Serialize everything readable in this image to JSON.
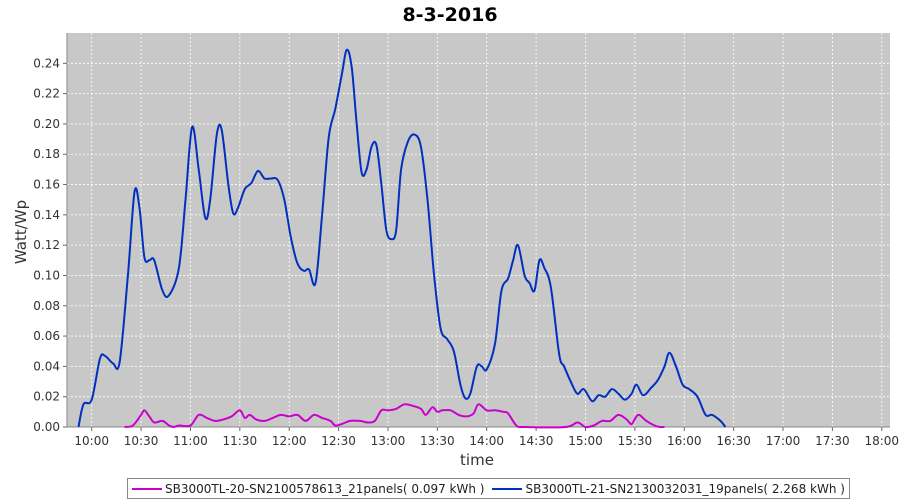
{
  "chart_data": {
    "type": "line",
    "title": "8-3-2016",
    "xlabel": "time",
    "ylabel": "Watt/Wp",
    "x_ticks": [
      "10:00",
      "10:30",
      "11:00",
      "11:30",
      "12:00",
      "12:30",
      "13:00",
      "13:30",
      "14:00",
      "14:30",
      "15:00",
      "15:30",
      "16:00",
      "16:30",
      "17:00",
      "17:30",
      "18:00"
    ],
    "xlim": [
      "09:45",
      "18:05"
    ],
    "ylim": [
      0,
      0.26
    ],
    "y_ticks": [
      "0.00",
      "0.02",
      "0.04",
      "0.06",
      "0.08",
      "0.10",
      "0.12",
      "0.14",
      "0.16",
      "0.18",
      "0.20",
      "0.22",
      "0.24"
    ],
    "grid": true,
    "legend_position": "bottom",
    "series": [
      {
        "name": "SB3000TL-20-SN2100578613_21panels( 0.097 kWh )",
        "color": "#cc00cc",
        "points": [
          [
            "10:20",
            0.0
          ],
          [
            "10:25",
            0.001
          ],
          [
            "10:30",
            0.008
          ],
          [
            "10:32",
            0.011
          ],
          [
            "10:35",
            0.007
          ],
          [
            "10:38",
            0.003
          ],
          [
            "10:43",
            0.004
          ],
          [
            "10:47",
            0.001
          ],
          [
            "10:50",
            0.0
          ],
          [
            "10:53",
            0.001
          ],
          [
            "11:00",
            0.001
          ],
          [
            "11:05",
            0.008
          ],
          [
            "11:10",
            0.006
          ],
          [
            "11:15",
            0.004
          ],
          [
            "11:20",
            0.005
          ],
          [
            "11:25",
            0.007
          ],
          [
            "11:30",
            0.011
          ],
          [
            "11:33",
            0.006
          ],
          [
            "11:36",
            0.008
          ],
          [
            "11:40",
            0.005
          ],
          [
            "11:45",
            0.004
          ],
          [
            "11:50",
            0.006
          ],
          [
            "11:55",
            0.008
          ],
          [
            "12:00",
            0.007
          ],
          [
            "12:05",
            0.008
          ],
          [
            "12:10",
            0.004
          ],
          [
            "12:15",
            0.008
          ],
          [
            "12:20",
            0.006
          ],
          [
            "12:25",
            0.004
          ],
          [
            "12:28",
            0.001
          ],
          [
            "12:32",
            0.002
          ],
          [
            "12:37",
            0.004
          ],
          [
            "12:43",
            0.004
          ],
          [
            "12:48",
            0.003
          ],
          [
            "12:52",
            0.004
          ],
          [
            "12:56",
            0.011
          ],
          [
            "13:00",
            0.011
          ],
          [
            "13:05",
            0.012
          ],
          [
            "13:10",
            0.015
          ],
          [
            "13:15",
            0.014
          ],
          [
            "13:20",
            0.012
          ],
          [
            "13:23",
            0.008
          ],
          [
            "13:27",
            0.013
          ],
          [
            "13:30",
            0.01
          ],
          [
            "13:33",
            0.011
          ],
          [
            "13:38",
            0.011
          ],
          [
            "13:43",
            0.008
          ],
          [
            "13:48",
            0.007
          ],
          [
            "13:52",
            0.009
          ],
          [
            "13:55",
            0.015
          ],
          [
            "14:00",
            0.011
          ],
          [
            "14:05",
            0.011
          ],
          [
            "14:10",
            0.01
          ],
          [
            "14:13",
            0.009
          ],
          [
            "14:18",
            0.001
          ],
          [
            "14:23",
            0.0
          ],
          [
            "14:48",
            0.0
          ],
          [
            "14:55",
            0.003
          ],
          [
            "15:00",
            0.0
          ],
          [
            "15:05",
            0.001
          ],
          [
            "15:10",
            0.004
          ],
          [
            "15:15",
            0.004
          ],
          [
            "15:20",
            0.008
          ],
          [
            "15:25",
            0.005
          ],
          [
            "15:28",
            0.002
          ],
          [
            "15:32",
            0.008
          ],
          [
            "15:37",
            0.004
          ],
          [
            "15:42",
            0.001
          ],
          [
            "15:45",
            0.0
          ],
          [
            "15:48",
            0.0
          ]
        ]
      },
      {
        "name": "SB3000TL-21-SN2130032031_19panels( 2.268 kWh )",
        "color": "#0030c0",
        "points": [
          [
            "09:52",
            0.0
          ],
          [
            "09:55",
            0.015
          ],
          [
            "10:00",
            0.018
          ],
          [
            "10:05",
            0.045
          ],
          [
            "10:08",
            0.047
          ],
          [
            "10:13",
            0.042
          ],
          [
            "10:17",
            0.043
          ],
          [
            "10:22",
            0.1
          ],
          [
            "10:26",
            0.155
          ],
          [
            "10:29",
            0.145
          ],
          [
            "10:32",
            0.112
          ],
          [
            "10:35",
            0.11
          ],
          [
            "10:38",
            0.11
          ],
          [
            "10:43",
            0.09
          ],
          [
            "10:47",
            0.087
          ],
          [
            "10:53",
            0.105
          ],
          [
            "10:57",
            0.15
          ],
          [
            "11:01",
            0.198
          ],
          [
            "11:05",
            0.17
          ],
          [
            "11:09",
            0.138
          ],
          [
            "11:12",
            0.15
          ],
          [
            "11:16",
            0.193
          ],
          [
            "11:19",
            0.196
          ],
          [
            "11:23",
            0.16
          ],
          [
            "11:26",
            0.141
          ],
          [
            "11:29",
            0.145
          ],
          [
            "11:33",
            0.157
          ],
          [
            "11:37",
            0.161
          ],
          [
            "11:41",
            0.169
          ],
          [
            "11:45",
            0.164
          ],
          [
            "11:49",
            0.164
          ],
          [
            "11:53",
            0.163
          ],
          [
            "11:57",
            0.15
          ],
          [
            "12:01",
            0.125
          ],
          [
            "12:05",
            0.108
          ],
          [
            "12:09",
            0.103
          ],
          [
            "12:12",
            0.104
          ],
          [
            "12:16",
            0.095
          ],
          [
            "12:20",
            0.14
          ],
          [
            "12:24",
            0.191
          ],
          [
            "12:28",
            0.21
          ],
          [
            "12:32",
            0.233
          ],
          [
            "12:35",
            0.249
          ],
          [
            "12:38",
            0.237
          ],
          [
            "12:41",
            0.2
          ],
          [
            "12:44",
            0.168
          ],
          [
            "12:47",
            0.17
          ],
          [
            "12:50",
            0.185
          ],
          [
            "12:53",
            0.186
          ],
          [
            "12:56",
            0.16
          ],
          [
            "12:59",
            0.13
          ],
          [
            "13:02",
            0.124
          ],
          [
            "13:05",
            0.13
          ],
          [
            "13:08",
            0.17
          ],
          [
            "13:12",
            0.188
          ],
          [
            "13:16",
            0.193
          ],
          [
            "13:20",
            0.185
          ],
          [
            "13:24",
            0.15
          ],
          [
            "13:28",
            0.1
          ],
          [
            "13:32",
            0.065
          ],
          [
            "13:36",
            0.058
          ],
          [
            "13:40",
            0.05
          ],
          [
            "13:44",
            0.028
          ],
          [
            "13:47",
            0.019
          ],
          [
            "13:50",
            0.022
          ],
          [
            "13:54",
            0.04
          ],
          [
            "13:57",
            0.04
          ],
          [
            "14:00",
            0.038
          ],
          [
            "14:05",
            0.055
          ],
          [
            "14:09",
            0.09
          ],
          [
            "14:13",
            0.098
          ],
          [
            "14:16",
            0.11
          ],
          [
            "14:19",
            0.12
          ],
          [
            "14:23",
            0.1
          ],
          [
            "14:26",
            0.095
          ],
          [
            "14:29",
            0.09
          ],
          [
            "14:32",
            0.11
          ],
          [
            "14:35",
            0.105
          ],
          [
            "14:39",
            0.092
          ],
          [
            "14:44",
            0.048
          ],
          [
            "14:47",
            0.04
          ],
          [
            "14:51",
            0.03
          ],
          [
            "14:55",
            0.022
          ],
          [
            "14:59",
            0.025
          ],
          [
            "15:04",
            0.017
          ],
          [
            "15:08",
            0.021
          ],
          [
            "15:12",
            0.02
          ],
          [
            "15:16",
            0.025
          ],
          [
            "15:20",
            0.022
          ],
          [
            "15:24",
            0.018
          ],
          [
            "15:28",
            0.022
          ],
          [
            "15:31",
            0.028
          ],
          [
            "15:35",
            0.021
          ],
          [
            "15:40",
            0.026
          ],
          [
            "15:44",
            0.031
          ],
          [
            "15:48",
            0.04
          ],
          [
            "15:51",
            0.049
          ],
          [
            "15:55",
            0.04
          ],
          [
            "15:59",
            0.028
          ],
          [
            "16:03",
            0.025
          ],
          [
            "16:08",
            0.02
          ],
          [
            "16:13",
            0.008
          ],
          [
            "16:17",
            0.008
          ],
          [
            "16:22",
            0.004
          ],
          [
            "16:25",
            0.0
          ]
        ]
      }
    ]
  }
}
